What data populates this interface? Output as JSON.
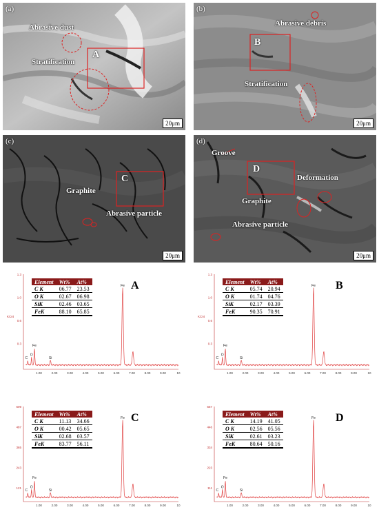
{
  "sem_panels": [
    {
      "label": "(a)",
      "letter": "A",
      "annotations": [
        "Abrasive dust",
        "Stratification"
      ],
      "scale": "20μm"
    },
    {
      "label": "(b)",
      "letter": "B",
      "annotations": [
        "Abrasive debris",
        "Stratification"
      ],
      "scale": "20μm"
    },
    {
      "label": "(c)",
      "letter": "C",
      "annotations": [
        "Graphite",
        "Abrasive particle"
      ],
      "scale": "20μm"
    },
    {
      "label": "(d)",
      "letter": "D",
      "annotations": [
        "Groove",
        "Deformation",
        "Graphite",
        "Abrasive particle"
      ],
      "scale": "20μm"
    }
  ],
  "table_headers": [
    "Element",
    "Wt%",
    "At%"
  ],
  "chart_data": [
    {
      "type": "line",
      "title": "A",
      "ylabel": "KCnt",
      "x_ticks": [
        "1.00",
        "2.00",
        "3.00",
        "4.00",
        "5.00",
        "6.00",
        "7.00",
        "8.00",
        "9.00",
        "10"
      ],
      "y_ticks": [
        "1.3",
        "1.0",
        "0.6",
        "0.3"
      ],
      "peak_labels": [
        "C",
        "O",
        "Fe",
        "Si",
        "Fe"
      ],
      "composition": [
        {
          "element": "C K",
          "wt": "06.77",
          "at": "23.53"
        },
        {
          "element": "O K",
          "wt": "02.67",
          "at": "06.98"
        },
        {
          "element": "SiK",
          "wt": "02.46",
          "at": "03.65"
        },
        {
          "element": "FeK",
          "wt": "88.10",
          "at": "65.85"
        }
      ]
    },
    {
      "type": "line",
      "title": "B",
      "ylabel": "KCnt",
      "x_ticks": [
        "1.00",
        "2.00",
        "3.00",
        "4.00",
        "5.00",
        "6.00",
        "7.00",
        "8.00",
        "9.00",
        "10"
      ],
      "y_ticks": [
        "1.3",
        "1.0",
        "0.6",
        "0.3"
      ],
      "peak_labels": [
        "C",
        "O",
        "Fe",
        "Si",
        "Fe"
      ],
      "composition": [
        {
          "element": "C K",
          "wt": "05.74",
          "at": "20.94"
        },
        {
          "element": "O K",
          "wt": "01.74",
          "at": "04.76"
        },
        {
          "element": "SiK",
          "wt": "02.17",
          "at": "03.39"
        },
        {
          "element": "FeK",
          "wt": "90.35",
          "at": "70.91"
        }
      ]
    },
    {
      "type": "line",
      "title": "C",
      "ylabel": "",
      "x_ticks": [
        "1.00",
        "2.00",
        "3.00",
        "4.00",
        "5.00",
        "6.00",
        "7.00",
        "8.00",
        "9.00",
        "10"
      ],
      "y_ticks": [
        "609",
        "487",
        "365",
        "243",
        "121"
      ],
      "peak_labels": [
        "C",
        "O",
        "Fe",
        "Si",
        "Fe"
      ],
      "composition": [
        {
          "element": "C K",
          "wt": "11.13",
          "at": "34.66"
        },
        {
          "element": "O K",
          "wt": "00.42",
          "at": "05.65"
        },
        {
          "element": "SiK",
          "wt": "02.68",
          "at": "03.57"
        },
        {
          "element": "FeK",
          "wt": "83.77",
          "at": "56.11"
        }
      ]
    },
    {
      "type": "line",
      "title": "D",
      "ylabel": "",
      "x_ticks": [
        "1.00",
        "2.00",
        "3.00",
        "4.00",
        "5.00",
        "6.00",
        "7.00",
        "8.00",
        "9.00",
        "10"
      ],
      "y_ticks": [
        "557",
        "446",
        "334",
        "223",
        "111"
      ],
      "peak_labels": [
        "C",
        "O",
        "Fe",
        "Si",
        "Fe"
      ],
      "composition": [
        {
          "element": "C K",
          "wt": "14.19",
          "at": "41.05"
        },
        {
          "element": "O K",
          "wt": "02.56",
          "at": "05.56"
        },
        {
          "element": "SiK",
          "wt": "02.61",
          "at": "03.23"
        },
        {
          "element": "FeK",
          "wt": "80.64",
          "at": "50.16"
        }
      ]
    }
  ]
}
